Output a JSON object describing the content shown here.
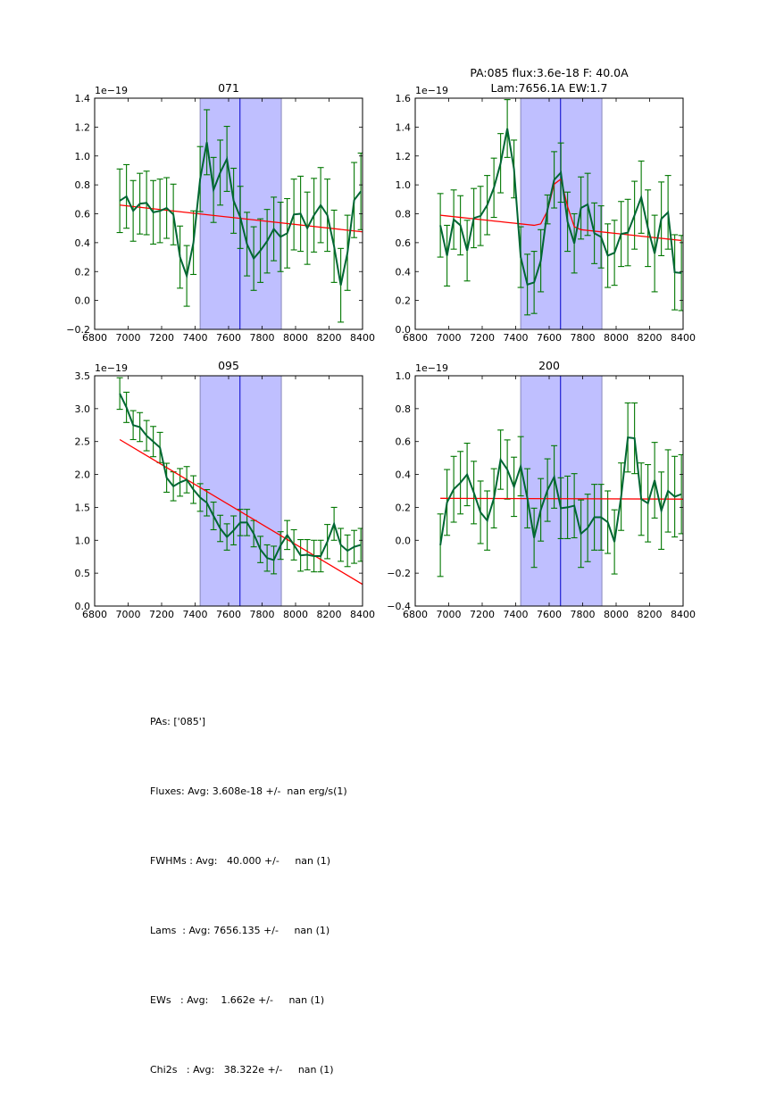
{
  "chart_data": [
    {
      "type": "line",
      "title": "071",
      "title_lines": [
        "071"
      ],
      "offset_label": "1e−19",
      "xlim": [
        6800,
        8400
      ],
      "ylim": [
        -0.2,
        1.4
      ],
      "xticks": [
        6800,
        7000,
        7200,
        7400,
        7600,
        7800,
        8000,
        8200,
        8400
      ],
      "yticks": [
        -0.2,
        0.0,
        0.2,
        0.4,
        0.6,
        0.8,
        1.0,
        1.2,
        1.4
      ],
      "ytick_labels": [
        "−0.2",
        "0.0",
        "0.2",
        "0.4",
        "0.6",
        "0.8",
        "1.0",
        "1.2",
        "1.4"
      ],
      "span": [
        7430,
        7915
      ],
      "vline": 7668,
      "x": [
        6950,
        6990,
        7030,
        7070,
        7110,
        7150,
        7190,
        7230,
        7270,
        7310,
        7350,
        7390,
        7430,
        7470,
        7510,
        7550,
        7590,
        7630,
        7670,
        7710,
        7750,
        7790,
        7830,
        7870,
        7910,
        7950,
        7990,
        8030,
        8070,
        8110,
        8150,
        8190,
        8230,
        8270,
        8310,
        8350,
        8390
      ],
      "series": [
        {
          "name": "flux",
          "color": "#006633",
          "values": [
            0.69,
            0.72,
            0.62,
            0.67,
            0.675,
            0.61,
            0.62,
            0.64,
            0.595,
            0.3,
            0.17,
            0.4,
            0.84,
            1.095,
            0.765,
            0.885,
            0.98,
            0.69,
            0.575,
            0.39,
            0.29,
            0.345,
            0.41,
            0.495,
            0.44,
            0.465,
            0.595,
            0.6,
            0.5,
            0.59,
            0.66,
            0.59,
            0.375,
            0.105,
            0.33,
            0.695,
            0.755
          ],
          "errors": [
            0.22,
            0.22,
            0.21,
            0.21,
            0.22,
            0.22,
            0.22,
            0.21,
            0.21,
            0.215,
            0.21,
            0.22,
            0.225,
            0.225,
            0.225,
            0.225,
            0.225,
            0.225,
            0.215,
            0.22,
            0.22,
            0.22,
            0.22,
            0.22,
            0.24,
            0.24,
            0.245,
            0.26,
            0.25,
            0.255,
            0.26,
            0.25,
            0.25,
            0.255,
            0.26,
            0.26,
            0.265
          ]
        },
        {
          "name": "model",
          "color": "#ff0000",
          "x_line": [
            6950,
            8400
          ],
          "values_line": [
            0.66,
            0.475
          ]
        }
      ]
    },
    {
      "type": "line",
      "title": "PA:085 flux:3.6e-18 F: 40.0A\nLam:7656.1A EW:1.7",
      "title_lines": [
        "PA:085 flux:3.6e-18 F: 40.0A",
        "Lam:7656.1A EW:1.7"
      ],
      "offset_label": "1e−19",
      "xlim": [
        6800,
        8400
      ],
      "ylim": [
        0.0,
        1.6
      ],
      "xticks": [
        6800,
        7000,
        7200,
        7400,
        7600,
        7800,
        8000,
        8200,
        8400
      ],
      "yticks": [
        0.0,
        0.2,
        0.4,
        0.6,
        0.8,
        1.0,
        1.2,
        1.4,
        1.6
      ],
      "ytick_labels": [
        "0.0",
        "0.2",
        "0.4",
        "0.6",
        "0.8",
        "1.0",
        "1.2",
        "1.4",
        "1.6"
      ],
      "span": [
        7430,
        7915
      ],
      "vline": 7668,
      "x": [
        6950,
        6990,
        7030,
        7070,
        7110,
        7150,
        7190,
        7230,
        7270,
        7310,
        7350,
        7390,
        7430,
        7470,
        7510,
        7550,
        7590,
        7630,
        7670,
        7710,
        7750,
        7790,
        7830,
        7870,
        7910,
        7950,
        7990,
        8030,
        8070,
        8110,
        8150,
        8190,
        8230,
        8270,
        8310,
        8350,
        8390
      ],
      "series": [
        {
          "name": "flux",
          "color": "#006633",
          "values": [
            0.72,
            0.51,
            0.76,
            0.72,
            0.545,
            0.77,
            0.785,
            0.86,
            0.98,
            1.15,
            1.39,
            1.11,
            0.5,
            0.31,
            0.325,
            0.475,
            0.83,
            1.035,
            1.085,
            0.745,
            0.595,
            0.84,
            0.865,
            0.665,
            0.64,
            0.51,
            0.53,
            0.66,
            0.67,
            0.79,
            0.915,
            0.7,
            0.525,
            0.765,
            0.81,
            0.395,
            0.39
          ],
          "errors": [
            0.22,
            0.21,
            0.205,
            0.205,
            0.21,
            0.205,
            0.205,
            0.205,
            0.205,
            0.205,
            0.2,
            0.2,
            0.21,
            0.21,
            0.215,
            0.215,
            0.1,
            0.195,
            0.205,
            0.205,
            0.205,
            0.215,
            0.215,
            0.21,
            0.215,
            0.22,
            0.225,
            0.225,
            0.23,
            0.235,
            0.25,
            0.265,
            0.265,
            0.255,
            0.255,
            0.26,
            0.26
          ]
        },
        {
          "name": "model",
          "color": "#ff0000",
          "values": [
            0.79,
            0.785,
            0.78,
            0.775,
            0.77,
            0.765,
            0.76,
            0.755,
            0.75,
            0.745,
            0.74,
            0.735,
            0.73,
            0.725,
            0.72,
            0.73,
            0.82,
            1.005,
            1.04,
            0.85,
            0.71,
            0.69,
            0.685,
            0.68,
            0.675,
            0.67,
            0.665,
            0.66,
            0.655,
            0.65,
            0.645,
            0.64,
            0.635,
            0.63,
            0.625,
            0.62,
            0.615
          ]
        }
      ]
    },
    {
      "type": "line",
      "title": "095",
      "title_lines": [
        "095"
      ],
      "offset_label": "1e−19",
      "xlim": [
        6800,
        8400
      ],
      "ylim": [
        0.0,
        3.5
      ],
      "xticks": [
        6800,
        7000,
        7200,
        7400,
        7600,
        7800,
        8000,
        8200,
        8400
      ],
      "yticks": [
        0.0,
        0.5,
        1.0,
        1.5,
        2.0,
        2.5,
        3.0,
        3.5
      ],
      "ytick_labels": [
        "0.0",
        "0.5",
        "1.0",
        "1.5",
        "2.0",
        "2.5",
        "3.0",
        "3.5"
      ],
      "span": [
        7430,
        7915
      ],
      "vline": 7668,
      "x": [
        6950,
        6990,
        7030,
        7070,
        7110,
        7150,
        7190,
        7230,
        7270,
        7310,
        7350,
        7390,
        7430,
        7470,
        7510,
        7550,
        7590,
        7630,
        7670,
        7710,
        7750,
        7790,
        7830,
        7870,
        7910,
        7950,
        7990,
        8030,
        8070,
        8110,
        8150,
        8190,
        8230,
        8270,
        8310,
        8350,
        8390
      ],
      "series": [
        {
          "name": "flux",
          "color": "#006633",
          "values": [
            3.23,
            3.02,
            2.75,
            2.72,
            2.59,
            2.5,
            2.41,
            1.95,
            1.82,
            1.88,
            1.92,
            1.77,
            1.65,
            1.57,
            1.37,
            1.18,
            1.05,
            1.15,
            1.27,
            1.27,
            1.1,
            0.86,
            0.73,
            0.7,
            0.92,
            1.08,
            0.93,
            0.77,
            0.78,
            0.76,
            0.76,
            0.98,
            1.25,
            0.93,
            0.84,
            0.9,
            0.93
          ],
          "errors": [
            0.24,
            0.23,
            0.22,
            0.22,
            0.23,
            0.23,
            0.23,
            0.22,
            0.22,
            0.21,
            0.2,
            0.21,
            0.21,
            0.2,
            0.21,
            0.2,
            0.2,
            0.22,
            0.2,
            0.2,
            0.2,
            0.2,
            0.2,
            0.21,
            0.21,
            0.22,
            0.23,
            0.24,
            0.23,
            0.24,
            0.24,
            0.26,
            0.25,
            0.25,
            0.24,
            0.25,
            0.25
          ]
        },
        {
          "name": "model",
          "color": "#ff0000",
          "x_line": [
            6950,
            8400
          ],
          "values_line": [
            2.53,
            0.33
          ]
        }
      ]
    },
    {
      "type": "line",
      "title": "200",
      "title_lines": [
        "200"
      ],
      "offset_label": "1e−19",
      "xlim": [
        6800,
        8400
      ],
      "ylim": [
        -0.4,
        1.0
      ],
      "xticks": [
        6800,
        7000,
        7200,
        7400,
        7600,
        7800,
        8000,
        8200,
        8400
      ],
      "yticks": [
        -0.4,
        -0.2,
        0.0,
        0.2,
        0.4,
        0.6,
        0.8,
        1.0
      ],
      "ytick_labels": [
        "−0.4",
        "−0.2",
        "0.0",
        "0.2",
        "0.4",
        "0.6",
        "0.8",
        "1.0"
      ],
      "span": [
        7430,
        7915
      ],
      "vline": 7668,
      "x": [
        6950,
        6990,
        7030,
        7070,
        7110,
        7150,
        7190,
        7230,
        7270,
        7310,
        7350,
        7390,
        7430,
        7470,
        7510,
        7550,
        7590,
        7630,
        7670,
        7710,
        7750,
        7790,
        7830,
        7870,
        7910,
        7950,
        7990,
        8030,
        8070,
        8110,
        8150,
        8190,
        8230,
        8270,
        8310,
        8350,
        8390
      ],
      "series": [
        {
          "name": "flux",
          "color": "#006633",
          "values": [
            -0.03,
            0.23,
            0.31,
            0.35,
            0.4,
            0.29,
            0.17,
            0.12,
            0.255,
            0.49,
            0.43,
            0.325,
            0.45,
            0.255,
            0.015,
            0.185,
            0.305,
            0.385,
            0.195,
            0.2,
            0.21,
            0.04,
            0.075,
            0.14,
            0.14,
            0.11,
            -0.01,
            0.265,
            0.625,
            0.62,
            0.25,
            0.225,
            0.365,
            0.18,
            0.3,
            0.265,
            0.28
          ],
          "errors": [
            0.19,
            0.2,
            0.2,
            0.19,
            0.19,
            0.19,
            0.19,
            0.18,
            0.18,
            0.18,
            0.18,
            0.18,
            0.18,
            0.18,
            0.18,
            0.19,
            0.19,
            0.19,
            0.185,
            0.19,
            0.195,
            0.205,
            0.205,
            0.2,
            0.2,
            0.19,
            0.195,
            0.205,
            0.21,
            0.215,
            0.22,
            0.235,
            0.23,
            0.235,
            0.25,
            0.245,
            0.24
          ]
        },
        {
          "name": "model",
          "color": "#ff0000",
          "x_line": [
            6950,
            8400
          ],
          "values_line": [
            0.255,
            0.25
          ]
        }
      ]
    }
  ],
  "summary": {
    "lines": [
      "PAs: ['085']",
      "Fluxes: Avg: 3.608e-18 +/-  nan erg/s(1)",
      "FWHMs : Avg:   40.000 +/-     nan (1)",
      "Lams  : Avg: 7656.135 +/-     nan (1)",
      "EWs   : Avg:    1.662e +/-     nan (1)",
      "Chi2s   : Avg:   38.322e +/-     nan (1)"
    ]
  },
  "colors": {
    "data_line": "#006633",
    "errorbar": "#007700",
    "model_line": "#ff0000",
    "span_fill": "#bfbfff",
    "span_edge": "#8888bb",
    "vline": "#0000cc"
  }
}
